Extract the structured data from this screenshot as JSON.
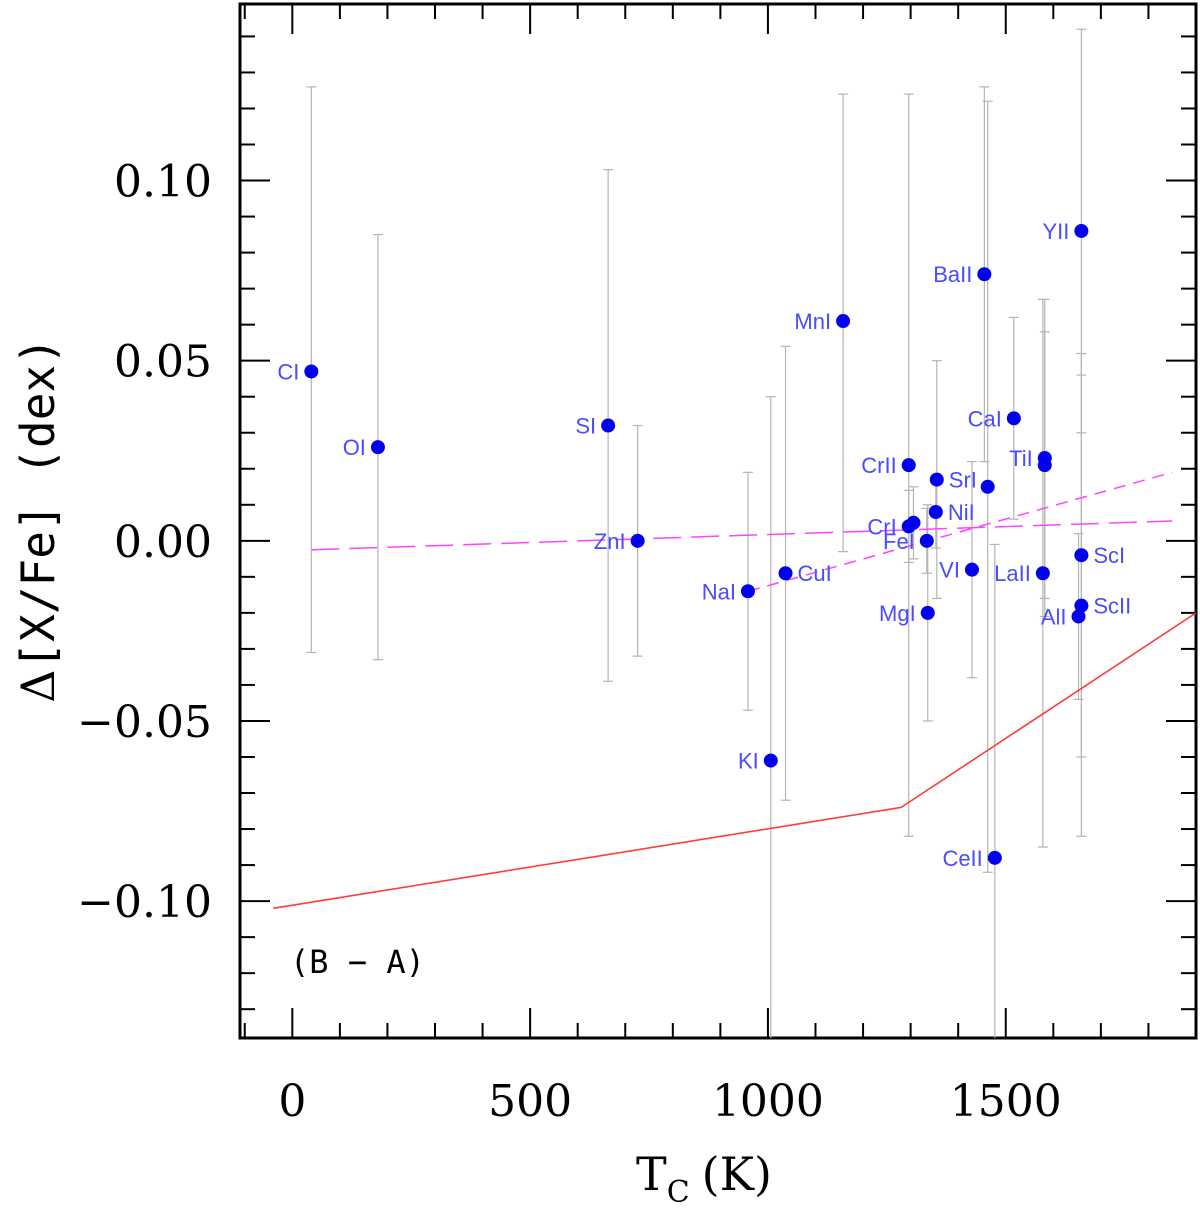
{
  "chart_data": {
    "type": "scatter",
    "xlabel": "T",
    "xlabel_sub": "C",
    "xlabel_unit": "(K)",
    "ylabel_delta": "Δ",
    "ylabel": "[X/Fe] (dex)",
    "xlim": [
      -110,
      1900
    ],
    "ylim": [
      -0.138,
      0.149
    ],
    "x_ticks": [
      0,
      500,
      1000,
      1500
    ],
    "x_tick_labels": [
      "0",
      "500",
      "1000",
      "1500"
    ],
    "y_ticks": [
      0.1,
      0.05,
      0.0,
      -0.05,
      -0.1
    ],
    "y_tick_labels": [
      "0.10",
      "0.05",
      "0.00",
      "−0.05",
      "−0.10"
    ],
    "annotation": "(B − A)",
    "colors": {
      "points": "#0000ee",
      "labels": "#4b4bff",
      "errorbars": "#b4b4b4",
      "fits": "#ff44ff",
      "model": "#ff3b3b"
    },
    "points": [
      {
        "label": "CI",
        "x": 40,
        "y": 0.047,
        "ylo": -0.031,
        "yhi": 0.126,
        "label_side": "left"
      },
      {
        "label": "OI",
        "x": 180,
        "y": 0.026,
        "ylo": -0.033,
        "yhi": 0.085,
        "label_side": "left"
      },
      {
        "label": "SI",
        "x": 664,
        "y": 0.032,
        "ylo": -0.039,
        "yhi": 0.103,
        "label_side": "left"
      },
      {
        "label": "ZnI",
        "x": 726,
        "y": 0.0,
        "ylo": -0.032,
        "yhi": 0.032,
        "label_side": "left"
      },
      {
        "label": "NaI",
        "x": 958,
        "y": -0.014,
        "ylo": -0.047,
        "yhi": 0.019,
        "label_side": "left"
      },
      {
        "label": "KI",
        "x": 1006,
        "y": -0.061,
        "ylo": -0.162,
        "yhi": 0.04,
        "label_side": "left"
      },
      {
        "label": "CuI",
        "x": 1037,
        "y": -0.009,
        "ylo": -0.072,
        "yhi": 0.054,
        "label_side": "right"
      },
      {
        "label": "MnI",
        "x": 1158,
        "y": 0.061,
        "ylo": -0.003,
        "yhi": 0.124,
        "label_side": "left"
      },
      {
        "label": "CrII",
        "x": 1296,
        "y": 0.021,
        "ylo": -0.082,
        "yhi": 0.124,
        "label_side": "left"
      },
      {
        "label": "CrI",
        "x": 1296,
        "y": 0.004,
        "ylo": -0.006,
        "yhi": 0.014,
        "label_side": "left"
      },
      {
        "label": "",
        "x": 1306,
        "y": 0.005,
        "ylo": -0.005,
        "yhi": 0.015,
        "label_side": "left"
      },
      {
        "label": "FeI",
        "x": 1334,
        "y": 0.0,
        "ylo": -0.009,
        "yhi": 0.009,
        "label_side": "left"
      },
      {
        "label": "MgI",
        "x": 1336,
        "y": -0.02,
        "ylo": -0.05,
        "yhi": 0.01,
        "label_side": "left"
      },
      {
        "label": "SrI",
        "x": 1355,
        "y": 0.017,
        "ylo": -0.016,
        "yhi": 0.05,
        "label_side": "right"
      },
      {
        "label": "NiI",
        "x": 1353,
        "y": 0.008,
        "ylo": -0.002,
        "yhi": 0.018,
        "label_side": "right"
      },
      {
        "label": "VI",
        "x": 1429,
        "y": -0.008,
        "ylo": -0.038,
        "yhi": 0.022,
        "label_side": "left"
      },
      {
        "label": "BaII",
        "x": 1455,
        "y": 0.074,
        "ylo": 0.022,
        "yhi": 0.126,
        "label_side": "left"
      },
      {
        "label": "",
        "x": 1462,
        "y": 0.015,
        "ylo": -0.092,
        "yhi": 0.122,
        "label_side": "left"
      },
      {
        "label": "CeII",
        "x": 1477,
        "y": -0.088,
        "ylo": -0.175,
        "yhi": -0.001,
        "label_side": "left"
      },
      {
        "label": "CaI",
        "x": 1517,
        "y": 0.034,
        "ylo": 0.006,
        "yhi": 0.062,
        "label_side": "left"
      },
      {
        "label": "TiI",
        "x": 1582,
        "y": 0.023,
        "ylo": -0.021,
        "yhi": 0.067,
        "label_side": "left"
      },
      {
        "label": "",
        "x": 1582,
        "y": 0.021,
        "ylo": -0.016,
        "yhi": 0.058,
        "label_side": "left"
      },
      {
        "label": "LaII",
        "x": 1578,
        "y": -0.009,
        "ylo": -0.085,
        "yhi": 0.067,
        "label_side": "left"
      },
      {
        "label": "YII",
        "x": 1659,
        "y": 0.086,
        "ylo": 0.03,
        "yhi": 0.142,
        "label_side": "left"
      },
      {
        "label": "ScI",
        "x": 1659,
        "y": -0.004,
        "ylo": -0.06,
        "yhi": 0.052,
        "label_side": "right"
      },
      {
        "label": "ScII",
        "x": 1659,
        "y": -0.018,
        "ylo": -0.082,
        "yhi": 0.046,
        "label_side": "right"
      },
      {
        "label": "AlI",
        "x": 1653,
        "y": -0.021,
        "ylo": -0.044,
        "yhi": 0.002,
        "label_side": "left"
      }
    ],
    "fit_lines": [
      {
        "name": "",
        "style": "long-dash",
        "x": [
          40,
          1850
        ],
        "y": [
          -0.0025,
          0.0055
        ]
      },
      {
        "name": "",
        "style": "dash",
        "x": [
          958,
          1850
        ],
        "y": [
          -0.014,
          0.019
        ]
      }
    ],
    "model_line": {
      "x": [
        -40,
        1280,
        1900
      ],
      "y": [
        -0.102,
        -0.074,
        -0.02
      ]
    }
  }
}
